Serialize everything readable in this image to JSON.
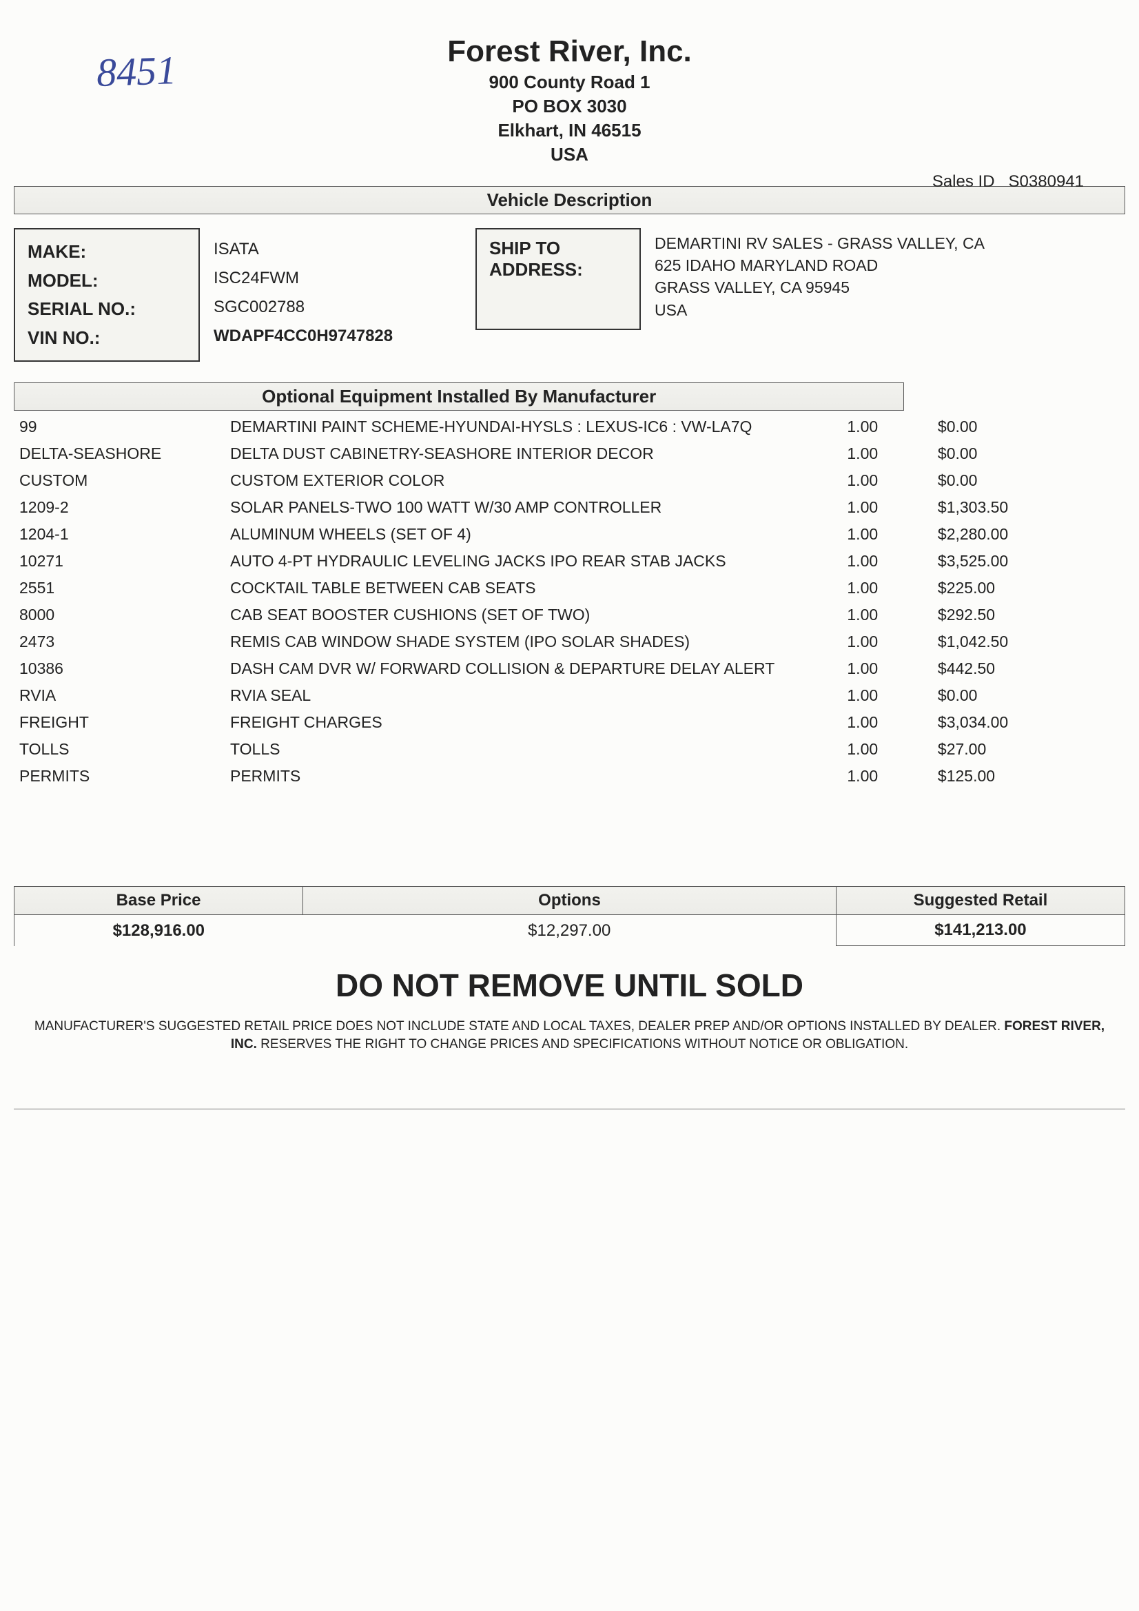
{
  "handwritten": "8451",
  "company": "Forest River, Inc.",
  "address": {
    "line1": "900 County Road 1",
    "line2": "PO BOX 3030",
    "line3": "Elkhart, IN 46515",
    "line4": "USA"
  },
  "sales_id_label": "Sales ID",
  "sales_id": "S0380941",
  "section_vehicle": "Vehicle Description",
  "vehicle_labels": {
    "make": "MAKE:",
    "model": "MODEL:",
    "serial": "SERIAL NO.:",
    "vin": "VIN NO.:"
  },
  "vehicle": {
    "make": "ISATA",
    "model": "ISC24FWM",
    "serial": "SGC002788",
    "vin": "WDAPF4CC0H9747828"
  },
  "ship_label": "SHIP TO ADDRESS:",
  "ship": {
    "l1": "DEMARTINI RV SALES - GRASS VALLEY, CA",
    "l2": "625 IDAHO MARYLAND ROAD",
    "l3": "GRASS VALLEY, CA 95945",
    "l4": "USA"
  },
  "section_options": "Optional Equipment Installed By Manufacturer",
  "options": [
    {
      "code": "99",
      "desc": "DEMARTINI PAINT SCHEME-HYUNDAI-HYSLS : LEXUS-IC6 : VW-LA7Q",
      "qty": "1.00",
      "price": "$0.00"
    },
    {
      "code": "DELTA-SEASHORE",
      "desc": "DELTA DUST CABINETRY-SEASHORE INTERIOR DECOR",
      "qty": "1.00",
      "price": "$0.00"
    },
    {
      "code": "CUSTOM",
      "desc": "CUSTOM EXTERIOR COLOR",
      "qty": "1.00",
      "price": "$0.00"
    },
    {
      "code": "1209-2",
      "desc": "SOLAR PANELS-TWO 100 WATT W/30 AMP CONTROLLER",
      "qty": "1.00",
      "price": "$1,303.50"
    },
    {
      "code": "1204-1",
      "desc": "ALUMINUM WHEELS (SET OF 4)",
      "qty": "1.00",
      "price": "$2,280.00"
    },
    {
      "code": "10271",
      "desc": "AUTO 4-PT HYDRAULIC LEVELING JACKS IPO REAR STAB JACKS",
      "qty": "1.00",
      "price": "$3,525.00"
    },
    {
      "code": "2551",
      "desc": "COCKTAIL TABLE BETWEEN CAB SEATS",
      "qty": "1.00",
      "price": "$225.00"
    },
    {
      "code": "8000",
      "desc": "CAB SEAT BOOSTER CUSHIONS (SET OF TWO)",
      "qty": "1.00",
      "price": "$292.50"
    },
    {
      "code": "2473",
      "desc": "REMIS CAB WINDOW SHADE SYSTEM (IPO SOLAR SHADES)",
      "qty": "1.00",
      "price": "$1,042.50"
    },
    {
      "code": "10386",
      "desc": "DASH CAM DVR W/ FORWARD COLLISION & DEPARTURE DELAY ALERT",
      "qty": "1.00",
      "price": "$442.50"
    },
    {
      "code": "RVIA",
      "desc": "RVIA SEAL",
      "qty": "1.00",
      "price": "$0.00"
    },
    {
      "code": "FREIGHT",
      "desc": "FREIGHT CHARGES",
      "qty": "1.00",
      "price": "$3,034.00"
    },
    {
      "code": "TOLLS",
      "desc": "TOLLS",
      "qty": "1.00",
      "price": "$27.00"
    },
    {
      "code": "PERMITS",
      "desc": "PERMITS",
      "qty": "1.00",
      "price": "$125.00"
    }
  ],
  "totals_headers": {
    "base": "Base Price",
    "options": "Options",
    "retail": "Suggested Retail"
  },
  "totals": {
    "base": "$128,916.00",
    "options": "$12,297.00",
    "retail": "$141,213.00"
  },
  "warning": "DO NOT REMOVE UNTIL SOLD",
  "fineprint1": "MANUFACTURER'S SUGGESTED RETAIL PRICE DOES NOT INCLUDE STATE AND LOCAL TAXES, DEALER PREP AND/OR OPTIONS INSTALLED BY DEALER. ",
  "fineprint_bold": "FOREST RIVER, INC.",
  "fineprint2": " RESERVES THE RIGHT TO CHANGE PRICES AND SPECIFICATIONS WITHOUT NOTICE OR OBLIGATION."
}
